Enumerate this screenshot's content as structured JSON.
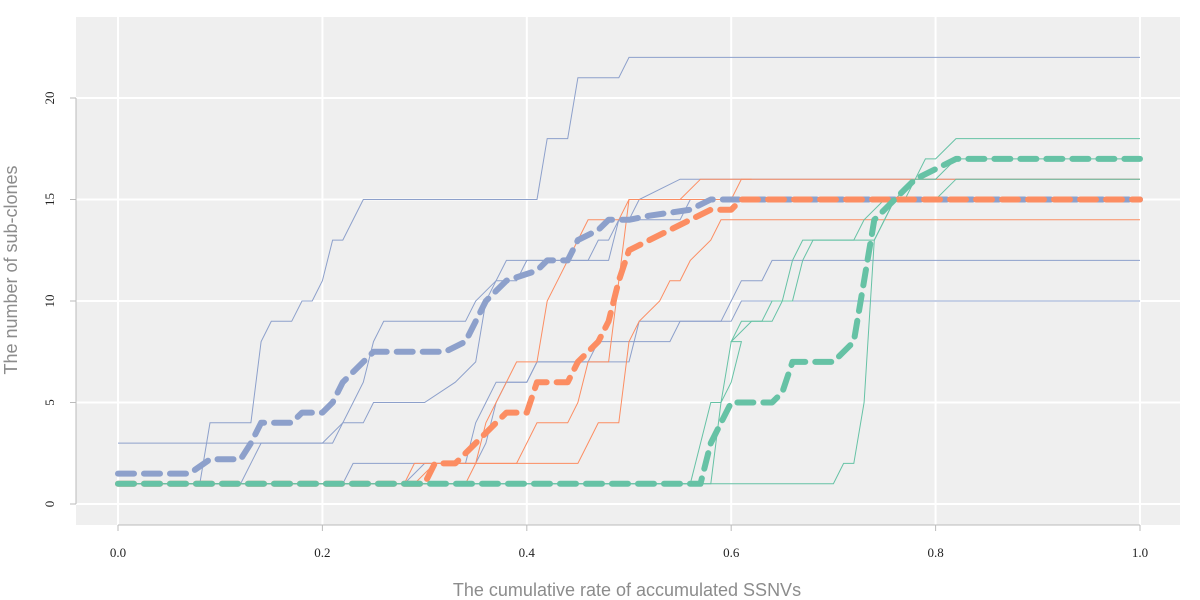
{
  "chart_data": {
    "type": "line",
    "xlabel": "The cumulative rate of accumulated SSNVs",
    "ylabel": "The number of sub-clones",
    "xlim": [
      0,
      1
    ],
    "ylim": [
      -1,
      23
    ],
    "x_ticks": [
      0.0,
      0.2,
      0.4,
      0.6,
      0.8,
      1.0
    ],
    "x_tick_labels": [
      "0.0",
      "0.2",
      "0.4",
      "0.6",
      "0.8",
      "1.0"
    ],
    "y_ticks": [
      0,
      5,
      10,
      15,
      20
    ],
    "y_tick_labels": [
      "0",
      "5",
      "10",
      "15",
      "20"
    ],
    "grid": true,
    "background": "#efefef",
    "grid_color": "#ffffff",
    "colors": {
      "blue": "#8da0cb",
      "orange": "#fc8d62",
      "green": "#66c2a5"
    },
    "series": [
      {
        "group": "blue",
        "style": "thin",
        "points": [
          [
            0,
            3
          ],
          [
            0.21,
            3
          ],
          [
            0.22,
            4
          ],
          [
            0.24,
            4
          ],
          [
            0.25,
            5
          ],
          [
            0.3,
            5
          ],
          [
            0.33,
            6
          ],
          [
            0.35,
            7
          ],
          [
            0.36,
            10
          ],
          [
            0.37,
            11
          ],
          [
            0.38,
            12
          ],
          [
            0.48,
            12
          ],
          [
            0.49,
            14
          ],
          [
            0.5,
            14
          ],
          [
            0.51,
            15
          ],
          [
            0.55,
            16
          ],
          [
            1,
            16
          ]
        ]
      },
      {
        "group": "blue",
        "style": "thin",
        "points": [
          [
            0,
            1
          ],
          [
            0.08,
            1
          ],
          [
            0.09,
            4
          ],
          [
            0.13,
            4
          ],
          [
            0.14,
            8
          ],
          [
            0.15,
            9
          ],
          [
            0.17,
            9
          ],
          [
            0.18,
            10
          ],
          [
            0.19,
            10
          ],
          [
            0.2,
            11
          ],
          [
            0.21,
            13
          ],
          [
            0.22,
            13
          ],
          [
            0.24,
            15
          ],
          [
            0.41,
            15
          ],
          [
            0.42,
            18
          ],
          [
            0.44,
            18
          ],
          [
            0.45,
            21
          ],
          [
            0.49,
            21
          ],
          [
            0.5,
            22
          ],
          [
            1,
            22
          ]
        ]
      },
      {
        "group": "blue",
        "style": "thin",
        "points": [
          [
            0,
            1
          ],
          [
            0.12,
            1
          ],
          [
            0.14,
            3
          ],
          [
            0.2,
            3
          ],
          [
            0.22,
            4
          ],
          [
            0.23,
            5
          ],
          [
            0.24,
            6
          ],
          [
            0.25,
            8
          ],
          [
            0.26,
            9
          ],
          [
            0.34,
            9
          ],
          [
            0.35,
            10
          ],
          [
            0.37,
            11
          ],
          [
            0.39,
            11
          ],
          [
            0.4,
            12
          ],
          [
            0.46,
            12
          ],
          [
            0.47,
            13
          ],
          [
            0.48,
            13
          ],
          [
            0.49,
            14
          ],
          [
            0.55,
            14
          ],
          [
            0.56,
            15
          ],
          [
            1,
            15
          ]
        ]
      },
      {
        "group": "blue",
        "style": "thin",
        "points": [
          [
            0,
            1
          ],
          [
            0.22,
            1
          ],
          [
            0.23,
            2
          ],
          [
            0.34,
            2
          ],
          [
            0.35,
            4
          ],
          [
            0.36,
            5
          ],
          [
            0.37,
            6
          ],
          [
            0.4,
            6
          ],
          [
            0.41,
            7
          ],
          [
            0.5,
            7
          ],
          [
            0.51,
            9
          ],
          [
            0.59,
            9
          ],
          [
            0.6,
            10
          ],
          [
            0.61,
            11
          ],
          [
            0.63,
            11
          ],
          [
            0.64,
            12
          ],
          [
            1,
            12
          ]
        ]
      },
      {
        "group": "blue",
        "style": "thin",
        "points": [
          [
            0,
            1
          ],
          [
            0.28,
            1
          ],
          [
            0.3,
            2
          ],
          [
            0.35,
            2
          ],
          [
            0.36,
            3
          ],
          [
            0.37,
            5
          ],
          [
            0.38,
            6
          ],
          [
            0.4,
            6
          ],
          [
            0.41,
            7
          ],
          [
            0.46,
            7
          ],
          [
            0.47,
            8
          ],
          [
            0.54,
            8
          ],
          [
            0.55,
            9
          ],
          [
            0.6,
            9
          ],
          [
            0.61,
            10
          ],
          [
            1,
            10
          ]
        ]
      },
      {
        "group": "blue",
        "style": "thick",
        "points": [
          [
            0,
            1.5
          ],
          [
            0.07,
            1.5
          ],
          [
            0.09,
            2.2
          ],
          [
            0.12,
            2.2
          ],
          [
            0.13,
            3
          ],
          [
            0.14,
            4
          ],
          [
            0.17,
            4
          ],
          [
            0.18,
            4.5
          ],
          [
            0.2,
            4.5
          ],
          [
            0.21,
            5
          ],
          [
            0.22,
            6
          ],
          [
            0.23,
            6.5
          ],
          [
            0.24,
            7
          ],
          [
            0.25,
            7.5
          ],
          [
            0.32,
            7.5
          ],
          [
            0.34,
            8
          ],
          [
            0.35,
            9
          ],
          [
            0.36,
            10
          ],
          [
            0.37,
            10.5
          ],
          [
            0.38,
            11
          ],
          [
            0.41,
            11.5
          ],
          [
            0.42,
            12
          ],
          [
            0.44,
            12
          ],
          [
            0.45,
            13
          ],
          [
            0.47,
            13.5
          ],
          [
            0.48,
            14
          ],
          [
            0.49,
            14
          ],
          [
            0.5,
            14
          ],
          [
            0.52,
            14.2
          ],
          [
            0.56,
            14.5
          ],
          [
            0.58,
            15
          ],
          [
            1,
            15
          ]
        ]
      },
      {
        "group": "orange",
        "style": "thin",
        "points": [
          [
            0,
            1
          ],
          [
            0.29,
            1
          ],
          [
            0.31,
            2
          ],
          [
            0.39,
            2
          ],
          [
            0.4,
            3
          ],
          [
            0.41,
            4
          ],
          [
            0.44,
            4
          ],
          [
            0.45,
            5
          ],
          [
            0.46,
            7
          ],
          [
            0.48,
            7
          ],
          [
            0.5,
            15
          ],
          [
            0.55,
            15
          ],
          [
            0.57,
            16
          ],
          [
            0.6,
            16
          ],
          [
            0.62,
            16
          ],
          [
            1,
            16
          ]
        ]
      },
      {
        "group": "orange",
        "style": "thin",
        "points": [
          [
            0,
            1
          ],
          [
            0.34,
            1
          ],
          [
            0.35,
            2
          ],
          [
            0.36,
            4
          ],
          [
            0.37,
            5
          ],
          [
            0.38,
            6
          ],
          [
            0.39,
            7
          ],
          [
            0.41,
            7
          ],
          [
            0.42,
            10
          ],
          [
            0.43,
            11
          ],
          [
            0.44,
            12
          ],
          [
            0.45,
            13
          ],
          [
            0.46,
            14
          ],
          [
            0.49,
            14
          ],
          [
            0.5,
            15
          ],
          [
            0.6,
            15
          ],
          [
            0.61,
            16
          ],
          [
            0.62,
            16
          ]
        ]
      },
      {
        "group": "orange",
        "style": "thin",
        "points": [
          [
            0,
            1
          ],
          [
            0.28,
            1
          ],
          [
            0.29,
            2
          ],
          [
            0.45,
            2
          ],
          [
            0.46,
            3
          ],
          [
            0.47,
            4
          ],
          [
            0.49,
            4
          ],
          [
            0.5,
            8
          ],
          [
            0.51,
            9
          ],
          [
            0.53,
            10
          ],
          [
            0.54,
            11
          ],
          [
            0.55,
            11
          ],
          [
            0.56,
            12
          ],
          [
            0.58,
            13
          ],
          [
            0.59,
            14
          ],
          [
            1,
            14
          ]
        ]
      },
      {
        "group": "orange",
        "style": "thick",
        "points": [
          [
            0,
            1
          ],
          [
            0.3,
            1
          ],
          [
            0.31,
            2
          ],
          [
            0.33,
            2
          ],
          [
            0.34,
            2.5
          ],
          [
            0.35,
            3
          ],
          [
            0.37,
            4
          ],
          [
            0.38,
            4.5
          ],
          [
            0.4,
            4.5
          ],
          [
            0.41,
            6
          ],
          [
            0.44,
            6
          ],
          [
            0.45,
            7
          ],
          [
            0.47,
            8
          ],
          [
            0.48,
            9
          ],
          [
            0.49,
            11
          ],
          [
            0.5,
            12.5
          ],
          [
            0.52,
            13
          ],
          [
            0.54,
            13.5
          ],
          [
            0.56,
            14
          ],
          [
            0.58,
            14.5
          ],
          [
            0.6,
            14.5
          ],
          [
            0.61,
            15
          ],
          [
            1,
            15
          ]
        ]
      },
      {
        "group": "green",
        "style": "thin",
        "points": [
          [
            0,
            1
          ],
          [
            0.58,
            1
          ],
          [
            0.59,
            5
          ],
          [
            0.6,
            6
          ],
          [
            0.61,
            8
          ],
          [
            0.6,
            8
          ],
          [
            0.62,
            9
          ],
          [
            0.63,
            9
          ],
          [
            0.64,
            9
          ],
          [
            0.65,
            10
          ],
          [
            0.66,
            10
          ],
          [
            0.67,
            12
          ],
          [
            0.68,
            13
          ],
          [
            0.74,
            13
          ],
          [
            0.76,
            15
          ],
          [
            0.8,
            15
          ],
          [
            0.82,
            16
          ],
          [
            1,
            16
          ]
        ]
      },
      {
        "group": "green",
        "style": "thin",
        "points": [
          [
            0,
            1
          ],
          [
            0.56,
            1
          ],
          [
            0.58,
            5
          ],
          [
            0.59,
            5
          ],
          [
            0.6,
            8
          ],
          [
            0.61,
            9
          ],
          [
            0.63,
            9
          ],
          [
            0.64,
            10
          ],
          [
            0.65,
            10
          ],
          [
            0.66,
            12
          ],
          [
            0.67,
            13
          ],
          [
            0.72,
            13
          ],
          [
            0.73,
            14
          ],
          [
            0.75,
            15
          ],
          [
            0.77,
            15
          ],
          [
            0.78,
            16
          ],
          [
            0.79,
            17
          ],
          [
            0.8,
            17
          ],
          [
            0.82,
            18
          ],
          [
            1,
            18
          ]
        ]
      },
      {
        "group": "green",
        "style": "thin",
        "points": [
          [
            0,
            1
          ],
          [
            0.7,
            1
          ],
          [
            0.71,
            2
          ],
          [
            0.72,
            2
          ],
          [
            0.73,
            5
          ],
          [
            0.74,
            13
          ],
          [
            0.75,
            14
          ],
          [
            0.76,
            15
          ],
          [
            0.78,
            16
          ],
          [
            0.8,
            16
          ],
          [
            0.82,
            17
          ],
          [
            1,
            17
          ]
        ]
      },
      {
        "group": "green",
        "style": "thick",
        "points": [
          [
            0,
            1
          ],
          [
            0.28,
            1
          ],
          [
            0.57,
            1
          ],
          [
            0.58,
            3
          ],
          [
            0.6,
            5
          ],
          [
            0.64,
            5
          ],
          [
            0.65,
            5.5
          ],
          [
            0.66,
            7
          ],
          [
            0.7,
            7
          ],
          [
            0.72,
            8
          ],
          [
            0.73,
            11
          ],
          [
            0.74,
            14
          ],
          [
            0.76,
            15
          ],
          [
            0.77,
            15.5
          ],
          [
            0.78,
            16
          ],
          [
            0.8,
            16.5
          ],
          [
            0.82,
            17
          ],
          [
            1,
            17
          ]
        ]
      }
    ]
  }
}
